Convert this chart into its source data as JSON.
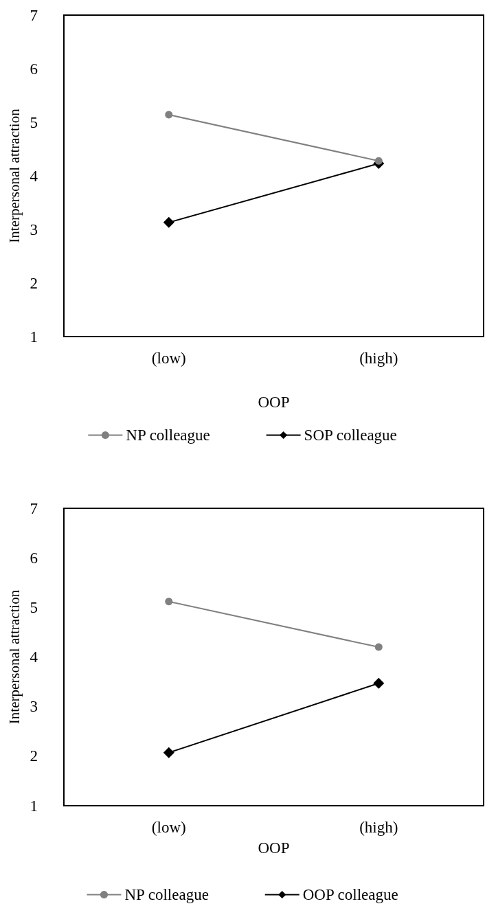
{
  "chart_data": [
    {
      "type": "line",
      "xlabel": "OOP",
      "ylabel": "Interpersonal attraction",
      "categories": [
        "(low)",
        "(high)"
      ],
      "series": [
        {
          "name": "NP colleague",
          "color": "#808080",
          "marker": "circle",
          "values": [
            5.14,
            4.28
          ]
        },
        {
          "name": "SOP colleague",
          "color": "#000000",
          "marker": "diamond",
          "values": [
            3.13,
            4.23
          ]
        }
      ],
      "ylim": [
        1,
        7
      ],
      "yticks": [
        1,
        2,
        3,
        4,
        5,
        6,
        7
      ],
      "grid": false,
      "legend": "bottom",
      "line_style": "solid"
    },
    {
      "type": "line",
      "xlabel": "OOP",
      "ylabel": "Interpersonal attraction",
      "categories": [
        "(low)",
        "(high)"
      ],
      "series": [
        {
          "name": "NP colleague",
          "color": "#808080",
          "marker": "circle",
          "values": [
            5.12,
            4.2
          ]
        },
        {
          "name": "OOP colleague",
          "color": "#000000",
          "marker": "diamond",
          "values": [
            2.07,
            3.47
          ]
        }
      ],
      "ylim": [
        1,
        7
      ],
      "yticks": [
        1,
        2,
        3,
        4,
        5,
        6,
        7
      ],
      "grid": false,
      "legend": "bottom",
      "line_style": "solid"
    }
  ]
}
